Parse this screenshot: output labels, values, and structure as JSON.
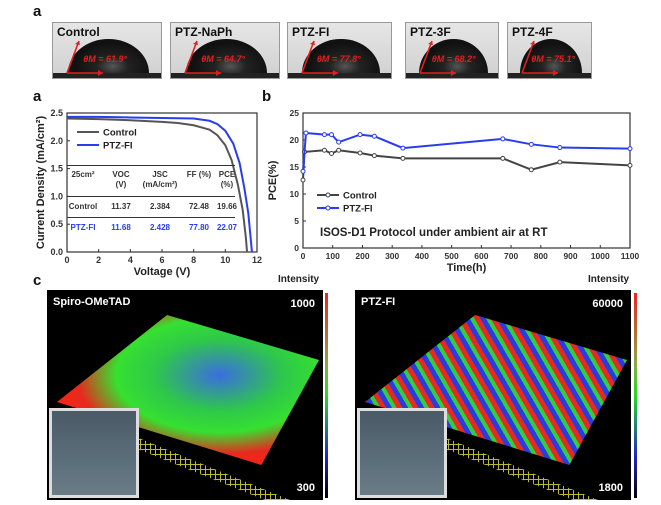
{
  "panel_labels": {
    "a_top": "a",
    "a": "a",
    "b": "b",
    "c": "c"
  },
  "contact_angles": [
    {
      "name": "Control",
      "angle": "θM = 61.9°"
    },
    {
      "name": "PTZ-NaPh",
      "angle": "θM = 64.7°"
    },
    {
      "name": "PTZ-FI",
      "angle": "θM = 77.8°"
    },
    {
      "name": "PTZ-3F",
      "angle": "θM = 68.2°"
    },
    {
      "name": "PTZ-4F",
      "angle": "θM = 75.1°"
    }
  ],
  "table": {
    "headers": [
      "25cm²",
      "VOC (V)",
      "JSC (mA/cm²)",
      "FF (%)",
      "PCE (%)"
    ],
    "rows": [
      [
        "Control",
        "11.37",
        "2.384",
        "72.48",
        "19.66"
      ],
      [
        "PTZ-FI",
        "11.68",
        "2.428",
        "77.80",
        "22.07"
      ]
    ]
  },
  "chart_data": [
    {
      "type": "line",
      "title": "",
      "xlabel": "Voltage (V)",
      "ylabel": "Current Density (mA/cm²)",
      "xlim": [
        0,
        12
      ],
      "ylim": [
        0,
        2.5
      ],
      "xticks": [
        "0",
        "2",
        "4",
        "6",
        "8",
        "10",
        "12"
      ],
      "yticks": [
        "0.0",
        "0.5",
        "1.0",
        "1.5",
        "2.0",
        "2.5"
      ],
      "legend": "top-left",
      "series": [
        {
          "name": "Control",
          "color": "#555555",
          "x": [
            0,
            2,
            4,
            6,
            7,
            8,
            9,
            9.5,
            10,
            10.4,
            10.8,
            11.1,
            11.3,
            11.37
          ],
          "y": [
            2.4,
            2.39,
            2.37,
            2.34,
            2.32,
            2.28,
            2.2,
            2.1,
            1.92,
            1.65,
            1.2,
            0.75,
            0.25,
            0
          ]
        },
        {
          "name": "PTZ-FI",
          "color": "#2a3cf0",
          "x": [
            0,
            2,
            4,
            6,
            8,
            9,
            9.5,
            10,
            10.5,
            10.9,
            11.2,
            11.45,
            11.6,
            11.68
          ],
          "y": [
            2.43,
            2.43,
            2.42,
            2.41,
            2.4,
            2.36,
            2.3,
            2.18,
            1.95,
            1.6,
            1.15,
            0.7,
            0.25,
            0
          ]
        }
      ]
    },
    {
      "type": "line",
      "title": "",
      "annotation": "ISOS-D1 Protocol under ambient air at RT",
      "xlabel": "Time(h)",
      "ylabel": "PCE(%)",
      "xlim": [
        0,
        1100
      ],
      "ylim": [
        0,
        25
      ],
      "xticks": [
        "0",
        "100",
        "200",
        "300",
        "400",
        "500",
        "600",
        "700",
        "800",
        "900",
        "1000",
        "1100"
      ],
      "yticks": [
        "0",
        "5",
        "10",
        "15",
        "20",
        "25"
      ],
      "legend": "bottom-left",
      "series": [
        {
          "name": "Control",
          "color": "#444444",
          "x": [
            0,
            5,
            72,
            96,
            120,
            192,
            240,
            336,
            672,
            768,
            864,
            1100
          ],
          "y": [
            12.6,
            17.8,
            18.1,
            17.5,
            18.1,
            17.6,
            17.1,
            16.6,
            16.6,
            14.5,
            15.9,
            15.3
          ]
        },
        {
          "name": "PTZ-FI",
          "color": "#2a3cf0",
          "x": [
            0,
            10,
            72,
            96,
            120,
            192,
            240,
            336,
            672,
            768,
            864,
            1100
          ],
          "y": [
            14.2,
            21.3,
            21.0,
            21.0,
            19.6,
            21.0,
            20.7,
            18.5,
            20.2,
            19.2,
            18.6,
            18.4
          ]
        }
      ]
    }
  ],
  "maps": [
    {
      "title": "Spiro-OMeTAD",
      "max": "1000",
      "min": "300",
      "colorbar_label": "Intensity"
    },
    {
      "title": "PTZ-FI",
      "max": "60000",
      "min": "1800",
      "colorbar_label": "Intensity"
    }
  ]
}
